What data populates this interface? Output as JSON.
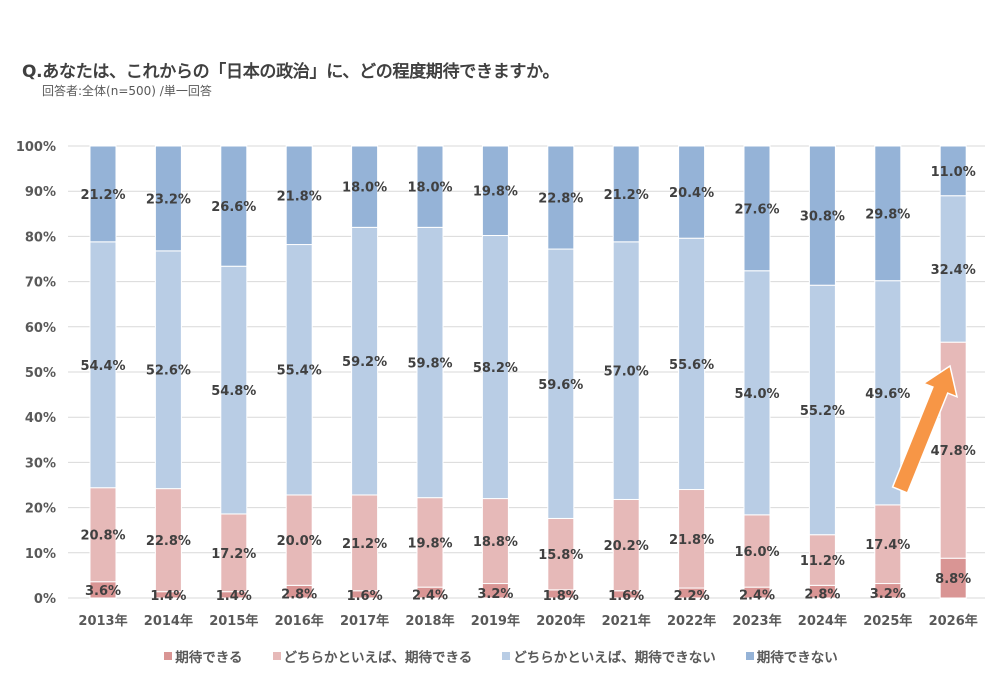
{
  "header": {
    "title": "Q.あなたは、これからの「日本の政治」に、どの程度期待できますか。",
    "subtitle": "回答者:全体(n=500) /単一回答"
  },
  "chart_data": {
    "type": "bar",
    "stacked": true,
    "title": "Q.あなたは、これからの「日本の政治」に、どの程度期待できますか。",
    "subtitle": "回答者:全体(n=500) /単一回答",
    "xlabel": "",
    "ylabel": "",
    "ylim": [
      0,
      100
    ],
    "yticks": [
      "0%",
      "10%",
      "20%",
      "30%",
      "40%",
      "50%",
      "60%",
      "70%",
      "80%",
      "90%",
      "100%"
    ],
    "grid": true,
    "legend_position": "bottom",
    "categories": [
      "2013年",
      "2014年",
      "2015年",
      "2016年",
      "2017年",
      "2018年",
      "2019年",
      "2020年",
      "2021年",
      "2022年",
      "2023年",
      "2024年",
      "2025年",
      "2026年"
    ],
    "series": [
      {
        "name": "期待できる",
        "color": "#d99594",
        "values": [
          3.6,
          1.4,
          1.4,
          2.8,
          1.6,
          2.4,
          3.2,
          1.8,
          1.6,
          2.2,
          2.4,
          2.8,
          3.2,
          8.8
        ]
      },
      {
        "name": "どちらかといえば、期待できる",
        "color": "#e6b9b8",
        "values": [
          20.8,
          22.8,
          17.2,
          20.0,
          21.2,
          19.8,
          18.8,
          15.8,
          20.2,
          21.8,
          16.0,
          11.2,
          17.4,
          47.8
        ]
      },
      {
        "name": "どちらかといえば、期待できない",
        "color": "#b9cde5",
        "values": [
          54.4,
          52.6,
          54.8,
          55.4,
          59.2,
          59.8,
          58.2,
          59.6,
          57.0,
          55.6,
          54.0,
          55.2,
          49.6,
          32.4
        ]
      },
      {
        "name": "期待できない",
        "color": "#95b3d7",
        "values": [
          21.2,
          23.2,
          26.6,
          21.8,
          18.0,
          18.0,
          19.8,
          22.8,
          21.2,
          20.4,
          27.6,
          30.8,
          29.8,
          11.0
        ]
      }
    ],
    "annotations": [
      {
        "type": "arrow",
        "color": "#f79646",
        "from_category": "2025年",
        "to_category": "2026年",
        "meaning": "increase"
      }
    ]
  }
}
